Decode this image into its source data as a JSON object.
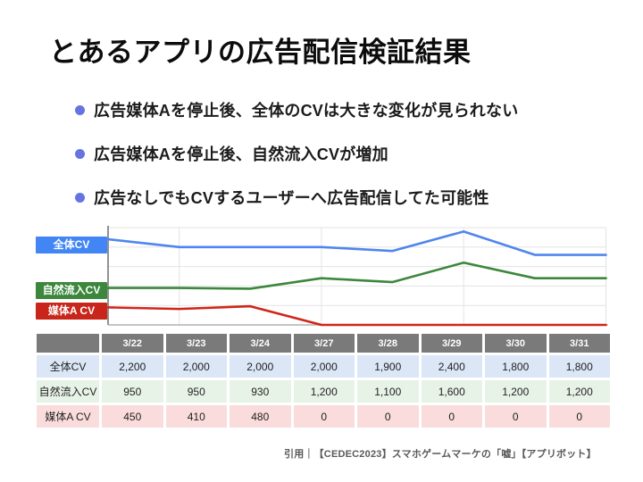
{
  "slide": {
    "title": "とあるアプリの広告配信検証結果",
    "bullets": [
      {
        "text": "広告媒体Aを停止後、全体のCVは大きな変化が見られない"
      },
      {
        "text": "広告媒体Aを停止後、自然流入CVが増加"
      },
      {
        "text": "広告なしでもCVするユーザーへ広告配信してた可能性"
      }
    ],
    "citation": "引用｜【CEDEC2023】スマホゲームマーケの「嘘」【アプリボット】"
  },
  "chart_data": {
    "type": "line",
    "title": "",
    "xlabel": "",
    "ylabel": "",
    "categories": [
      "3/22",
      "3/23",
      "3/24",
      "3/27",
      "3/28",
      "3/29",
      "3/30",
      "3/31"
    ],
    "series": [
      {
        "key": "total-cv",
        "name": "全体CV",
        "color": "#4285f4",
        "line_color": "#4f86ec",
        "values": [
          2200,
          2000,
          2000,
          2000,
          1900,
          2400,
          1800,
          1800
        ]
      },
      {
        "key": "organic-cv",
        "name": "自然流入CV",
        "color": "#3c873c",
        "line_color": "#3c873c",
        "values": [
          950,
          950,
          930,
          1200,
          1100,
          1600,
          1200,
          1200
        ]
      },
      {
        "key": "media-a-cv",
        "name": "媒体A CV",
        "color": "#c9261b",
        "line_color": "#d02619",
        "values": [
          450,
          410,
          480,
          0,
          0,
          0,
          0,
          0
        ]
      }
    ],
    "ylim": [
      0,
      2500
    ],
    "gridline_step": 500,
    "grid": true,
    "legend_position": "left"
  },
  "table": {
    "header_bg": "#7a7a7a",
    "headers": [
      "",
      "3/22",
      "3/23",
      "3/24",
      "3/27",
      "3/28",
      "3/29",
      "3/30",
      "3/31"
    ],
    "rows": [
      {
        "label": "全体CV",
        "bg": "#dbe7f6",
        "values": [
          "2,200",
          "2,000",
          "2,000",
          "2,000",
          "1,900",
          "2,400",
          "1,800",
          "1,800"
        ]
      },
      {
        "label": "自然流入CV",
        "bg": "#e8f3e8",
        "values": [
          "950",
          "950",
          "930",
          "1,200",
          "1,100",
          "1,600",
          "1,200",
          "1,200"
        ]
      },
      {
        "label": "媒体A CV",
        "bg": "#fadcdc",
        "values": [
          "450",
          "410",
          "480",
          "0",
          "0",
          "0",
          "0",
          "0"
        ]
      }
    ]
  },
  "colors": {
    "bullet_dot": "#6673e2",
    "gridline": "#e3e3e3",
    "axis_y": "#6e6e6e",
    "axis_x": "#b0b0b0"
  }
}
